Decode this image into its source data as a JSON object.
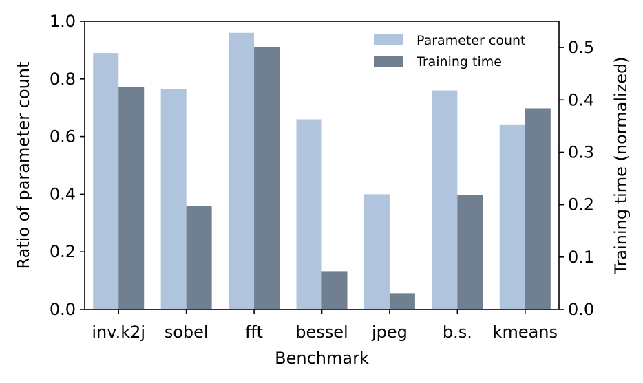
{
  "chart_data": {
    "type": "bar",
    "title": "",
    "xlabel": "Benchmark",
    "ylabel": "Ratio of parameter count",
    "y2label": "Training time (normalized)",
    "categories": [
      "inv.k2j",
      "sobel",
      "fft",
      "bessel",
      "jpeg",
      "b.s.",
      "kmeans"
    ],
    "ylim": [
      0,
      1.0
    ],
    "y2lim": [
      0,
      0.55
    ],
    "yticks": [
      "0.0",
      "0.2",
      "0.4",
      "0.6",
      "0.8",
      "1.0"
    ],
    "y2ticks": [
      "0.0",
      "0.1",
      "0.2",
      "0.3",
      "0.4",
      "0.5"
    ],
    "legend_position": "top-right",
    "grid": false,
    "series": [
      {
        "name": "Parameter count",
        "axis": "left",
        "color": "#b0c4de",
        "values": [
          0.89,
          0.765,
          0.96,
          0.66,
          0.4,
          0.76,
          0.64
        ]
      },
      {
        "name": "Training time",
        "axis": "right",
        "color": "#708090",
        "values": [
          0.424,
          0.198,
          0.501,
          0.073,
          0.031,
          0.218,
          0.384
        ]
      }
    ]
  }
}
